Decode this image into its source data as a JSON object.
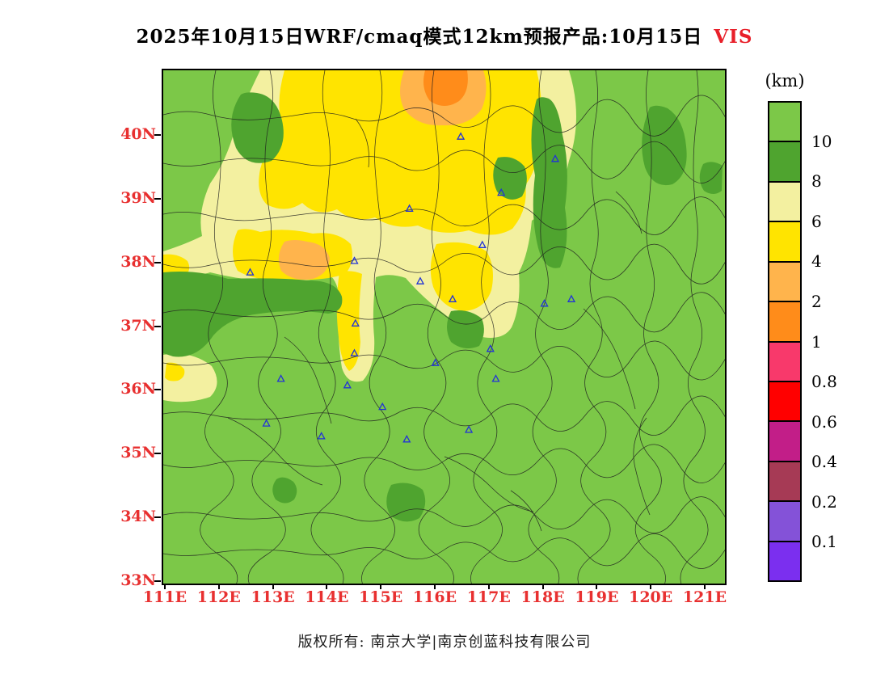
{
  "title": {
    "text": "2025年10月15日WRF/cmaq模式12km预报产品:10月15日",
    "suffix": "VIS"
  },
  "colorbar": {
    "unit": "(km)",
    "labels": [
      "10",
      "8",
      "6",
      "4",
      "2",
      "1",
      "0.8",
      "0.6",
      "0.4",
      "0.2",
      "0.1"
    ],
    "colors": [
      "#7CC848",
      "#4FA42F",
      "#F3F0A0",
      "#FFE400",
      "#FFB44C",
      "#FF8C1A",
      "#F8396B",
      "#FF0000",
      "#C21E88",
      "#A63A55",
      "#8452D8",
      "#7B2FEF"
    ]
  },
  "axes": {
    "x_labels": [
      "111E",
      "112E",
      "113E",
      "114E",
      "115E",
      "116E",
      "117E",
      "118E",
      "119E",
      "120E",
      "121E"
    ],
    "y_labels": [
      "40N",
      "39N",
      "38N",
      "37N",
      "36N",
      "35N",
      "34N",
      "33N"
    ]
  },
  "palette": {
    "axis_label_color": "#e83030",
    "title_highlight_color": "#e8202a",
    "marker_color": "#2233d6",
    "base_fill": "#7CC848"
  },
  "map": {
    "markers": [
      {
        "lon": 116.45,
        "lat": 40.0
      },
      {
        "lon": 117.2,
        "lat": 39.12
      },
      {
        "lon": 118.2,
        "lat": 39.65
      },
      {
        "lon": 115.5,
        "lat": 38.87
      },
      {
        "lon": 114.48,
        "lat": 38.05
      },
      {
        "lon": 116.85,
        "lat": 38.3
      },
      {
        "lon": 112.55,
        "lat": 37.87
      },
      {
        "lon": 115.7,
        "lat": 37.73
      },
      {
        "lon": 116.3,
        "lat": 37.45
      },
      {
        "lon": 118.5,
        "lat": 37.45
      },
      {
        "lon": 118.0,
        "lat": 37.38
      },
      {
        "lon": 117.0,
        "lat": 36.67
      },
      {
        "lon": 114.5,
        "lat": 37.07
      },
      {
        "lon": 114.48,
        "lat": 36.6
      },
      {
        "lon": 115.98,
        "lat": 36.45
      },
      {
        "lon": 117.1,
        "lat": 36.2
      },
      {
        "lon": 113.12,
        "lat": 36.2
      },
      {
        "lon": 114.35,
        "lat": 36.1
      },
      {
        "lon": 115.0,
        "lat": 35.76
      },
      {
        "lon": 112.85,
        "lat": 35.5
      },
      {
        "lon": 113.87,
        "lat": 35.3
      },
      {
        "lon": 115.45,
        "lat": 35.25
      },
      {
        "lon": 116.6,
        "lat": 35.4
      }
    ]
  },
  "footer": {
    "text": "版权所有: 南京大学|南京创蓝科技有限公司"
  }
}
